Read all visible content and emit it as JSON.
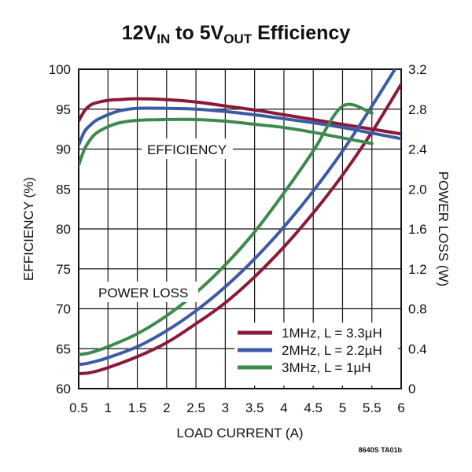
{
  "chart_data": {
    "type": "line",
    "title": {
      "main_a": "12V",
      "sub_a": "IN",
      "main_b": " to 5V",
      "sub_b": "OUT",
      "main_c": " Efficiency"
    },
    "xlabel": "LOAD CURRENT (A)",
    "ylabel_left": "EFFICIENCY (%)",
    "ylabel_right": "POWER LOSS (W)",
    "xlim": [
      0.5,
      6
    ],
    "ylim_left": [
      60,
      100
    ],
    "ylim_right": [
      0,
      3.2
    ],
    "x_ticks": [
      "0.5",
      "1",
      "1.5",
      "2",
      "2.5",
      "3",
      "3.5",
      "4",
      "4.5",
      "5",
      "5.5",
      "6"
    ],
    "y_left_ticks": [
      "60",
      "65",
      "70",
      "75",
      "80",
      "85",
      "90",
      "95",
      "100"
    ],
    "y_right_ticks": [
      "0",
      "0.4",
      "0.8",
      "1.2",
      "1.6",
      "2.0",
      "2.4",
      "2.8",
      "3.2"
    ],
    "grid": true,
    "legend_position": "bottom-right",
    "annotations": {
      "efficiency": "EFFICIENCY",
      "power_loss": "POWER LOSS"
    },
    "figure_code": "8640S TA01b",
    "series": [
      {
        "name": "1MHz, L = 3.3µH",
        "color": "#8b1a3a",
        "efficiency": {
          "x": [
            0.5,
            0.6,
            0.7,
            0.8,
            1.0,
            1.2,
            1.5,
            2.0,
            2.5,
            3.0,
            3.5,
            4.0,
            4.5,
            5.0,
            5.5,
            6.0
          ],
          "y": [
            93.5,
            94.8,
            95.5,
            95.8,
            96.1,
            96.2,
            96.3,
            96.2,
            95.9,
            95.4,
            94.9,
            94.3,
            93.7,
            93.1,
            92.5,
            91.9
          ]
        },
        "power_loss": {
          "x": [
            0.5,
            0.7,
            1.0,
            1.5,
            2.0,
            2.5,
            3.0,
            3.5,
            4.0,
            4.5,
            5.0,
            5.5,
            6.0
          ],
          "y": [
            0.15,
            0.16,
            0.21,
            0.32,
            0.46,
            0.65,
            0.86,
            1.12,
            1.42,
            1.76,
            2.14,
            2.57,
            3.05
          ]
        }
      },
      {
        "name": "2MHz, L = 2.2µH",
        "color": "#3b5ba5",
        "efficiency": {
          "x": [
            0.5,
            0.6,
            0.7,
            0.8,
            1.0,
            1.2,
            1.5,
            2.0,
            2.5,
            3.0,
            3.5,
            4.0,
            4.5,
            5.0,
            5.5,
            6.0
          ],
          "y": [
            90.5,
            92.2,
            93.0,
            93.6,
            94.3,
            94.8,
            95.1,
            95.1,
            95.0,
            94.7,
            94.3,
            93.8,
            93.3,
            92.7,
            92.0,
            91.3
          ]
        },
        "power_loss": {
          "x": [
            0.5,
            0.7,
            1.0,
            1.5,
            2.0,
            2.5,
            3.0,
            3.5,
            4.0,
            4.5,
            5.0,
            5.5,
            6.0
          ],
          "y": [
            0.24,
            0.26,
            0.31,
            0.42,
            0.58,
            0.78,
            1.02,
            1.3,
            1.62,
            1.98,
            2.38,
            2.83,
            3.3
          ]
        }
      },
      {
        "name": "3MHz, L = 1µH",
        "color": "#3d8a4e",
        "efficiency": {
          "x": [
            0.5,
            0.6,
            0.7,
            0.8,
            1.0,
            1.2,
            1.5,
            2.0,
            2.5,
            3.0,
            3.5,
            4.0,
            4.5,
            5.0,
            5.5
          ],
          "y": [
            88.0,
            90.0,
            91.2,
            92.0,
            92.8,
            93.3,
            93.6,
            93.7,
            93.7,
            93.5,
            93.1,
            92.7,
            92.1,
            91.4,
            90.7
          ]
        },
        "power_loss": {
          "x": [
            0.5,
            0.7,
            1.0,
            1.5,
            2.0,
            2.5,
            3.0,
            3.5,
            4.0,
            4.5,
            5.0,
            5.5
          ],
          "y": [
            0.34,
            0.36,
            0.42,
            0.55,
            0.73,
            0.96,
            1.24,
            1.57,
            1.96,
            2.38,
            2.83,
            2.76
          ]
        }
      }
    ]
  }
}
